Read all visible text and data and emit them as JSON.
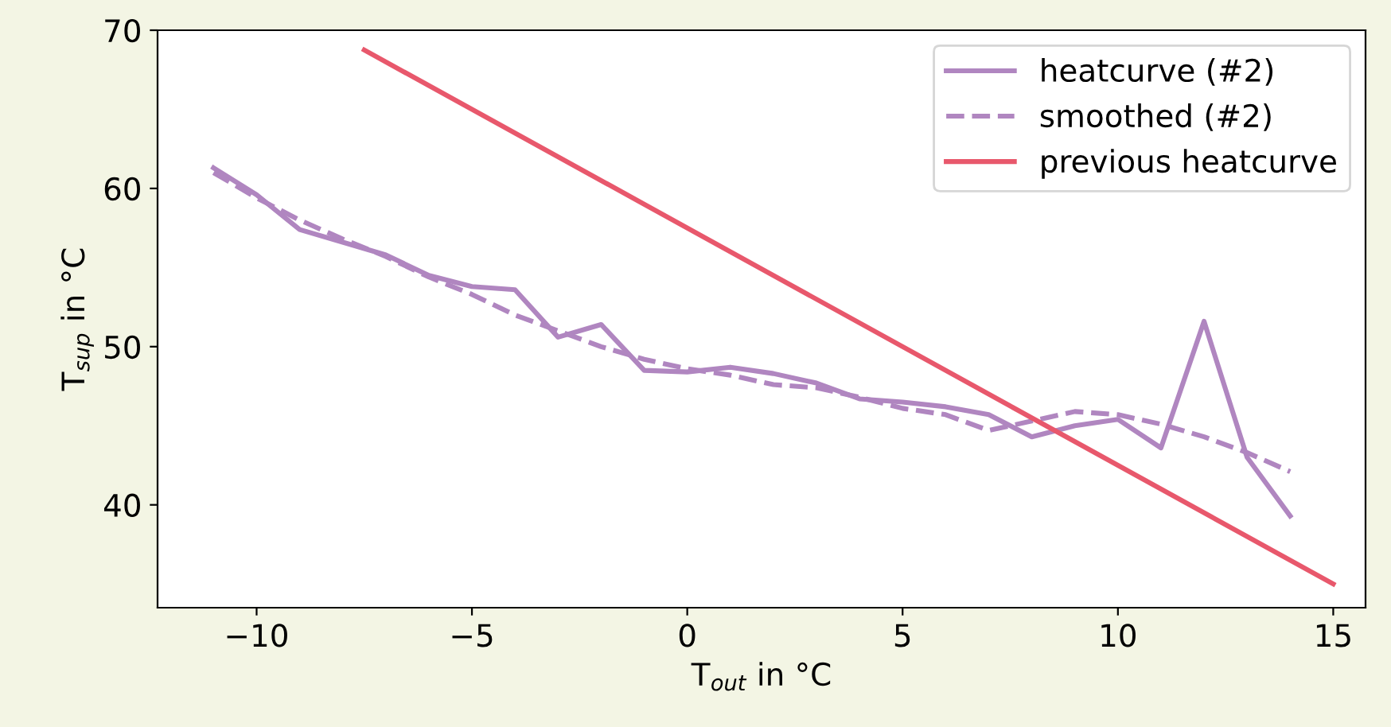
{
  "chart_data": {
    "type": "line",
    "xlabel": "T$_{out}$ in °C",
    "ylabel": "T$_{sup}$ in °C",
    "xlim": [
      -12.3,
      15.75
    ],
    "ylim": [
      33.5,
      70
    ],
    "xticks": [
      {
        "value": -10,
        "label": "−10"
      },
      {
        "value": -5,
        "label": "−5"
      },
      0,
      5,
      10,
      15
    ],
    "yticks": [
      40,
      50,
      60,
      70
    ],
    "legend": "top right",
    "grid": false,
    "series": [
      {
        "name": "heatcurve (#2)",
        "color": "#b086c0",
        "line_style": "solid",
        "x": [
          -11,
          -10,
          -9,
          -8,
          -7,
          -6,
          -5,
          -4,
          -3,
          -2,
          -1,
          0,
          1,
          2,
          3,
          4,
          5,
          6,
          7,
          8,
          9,
          10,
          11,
          12,
          13,
          14
        ],
        "values": [
          61.3,
          59.6,
          57.4,
          56.6,
          55.8,
          54.5,
          53.8,
          53.6,
          50.6,
          51.4,
          48.5,
          48.4,
          48.7,
          48.3,
          47.7,
          46.7,
          46.5,
          46.2,
          45.7,
          44.3,
          45.0,
          45.4,
          43.6,
          51.6,
          43.0,
          39.3
        ]
      },
      {
        "name": "smoothed (#2)",
        "color": "#b086c0",
        "line_style": "dashed",
        "x": [
          -11,
          -10,
          -9,
          -8,
          -7,
          -6,
          -5,
          -4,
          -3,
          -2,
          -1,
          0,
          1,
          2,
          3,
          4,
          5,
          6,
          7,
          8,
          9,
          10,
          11,
          12,
          13,
          14
        ],
        "values": [
          61.0,
          59.4,
          58.0,
          56.8,
          55.7,
          54.4,
          53.3,
          52.0,
          51.0,
          50.0,
          49.2,
          48.6,
          48.2,
          47.6,
          47.4,
          46.8,
          46.1,
          45.7,
          44.7,
          45.3,
          45.9,
          45.7,
          45.1,
          44.3,
          43.3,
          42.1
        ]
      },
      {
        "name": "previous heatcurve",
        "color": "#e8586c",
        "line_style": "solid",
        "x": [
          -7.5,
          15
        ],
        "values": [
          68.75,
          35
        ]
      }
    ]
  }
}
